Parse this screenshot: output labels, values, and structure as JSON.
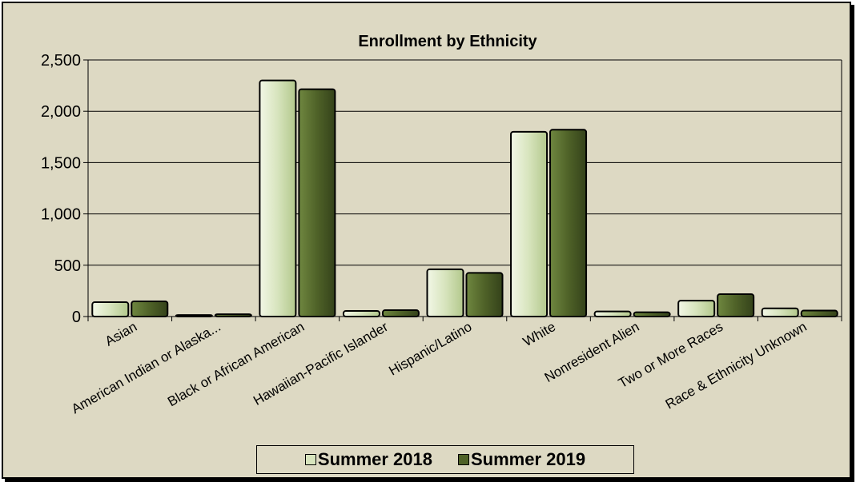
{
  "chart_data": {
    "type": "bar",
    "title": "Enrollment by Ethnicity",
    "categories": [
      "Asian",
      "American Indian or Alaska...",
      "Black or African American",
      "Hawaiian-Pacific Islander",
      "Hispanic/Latino",
      "White",
      "Nonresident Alien",
      "Two or More Races",
      "Race & Ethnicity Unknown"
    ],
    "series": [
      {
        "name": "Summer 2018",
        "values": [
          140,
          15,
          2300,
          55,
          460,
          1800,
          50,
          155,
          80
        ],
        "color": "#d7e4bd"
      },
      {
        "name": "Summer 2019",
        "values": [
          148,
          22,
          2215,
          62,
          425,
          1820,
          42,
          218,
          58
        ],
        "color": "#4f6228"
      }
    ],
    "ylim": [
      0,
      2500
    ],
    "yticks": [
      "0",
      "500",
      "1,000",
      "1,500",
      "2,000",
      "2,500"
    ],
    "grid": true,
    "legend": "bottom"
  }
}
